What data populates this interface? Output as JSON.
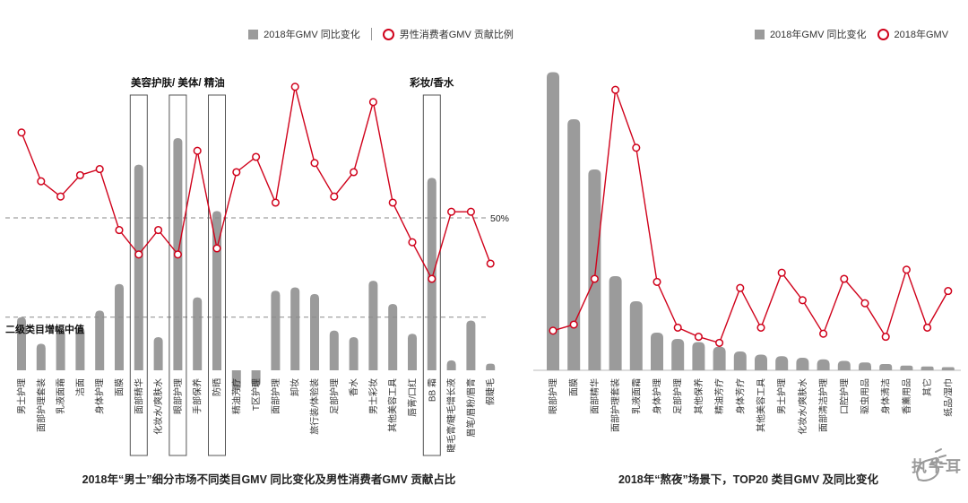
{
  "colors": {
    "bar": "#9B9B9B",
    "line": "#D0021B",
    "dashed": "#8a8a8a",
    "box": "#555555"
  },
  "logo": {
    "text": "执牛耳"
  },
  "chart_data": [
    {
      "type": "bar+line",
      "title": "2018年“男士”细分市场不同类目GMV 同比变化及男性消费者GMV 贡献占比",
      "legend_position": "top",
      "categories": [
        "男士护理",
        "面部护理套装",
        "乳液面霜",
        "洁面",
        "身体护理",
        "面膜",
        "面部精华",
        "化妆水/爽肤水",
        "眼部护理",
        "手部保养",
        "防晒",
        "精油芳疗",
        "T区护理",
        "面部护理",
        "卸妆",
        "旅行装/体验装",
        "足部护理",
        "香水",
        "男士彩妆",
        "其他美容工具",
        "唇膏/口红",
        "BB 霜",
        "睫毛膏/睫毛增长液",
        "眉笔/眉粉/眉膏",
        "假睫毛"
      ],
      "series": [
        {
          "name": "2018年GMV 同比变化",
          "type": "bar",
          "values": [
            0.16,
            0.08,
            0.12,
            0.13,
            0.18,
            0.26,
            0.62,
            0.1,
            0.7,
            0.22,
            0.48,
            -0.06,
            -0.05,
            0.24,
            0.25,
            0.23,
            0.12,
            0.1,
            0.27,
            0.2,
            0.11,
            0.58,
            0.03,
            0.15,
            0.02
          ]
        },
        {
          "name": "男性消费者GMV 贡献比例",
          "type": "line",
          "unit": "%",
          "values": [
            78,
            62,
            57,
            64,
            66,
            46,
            38,
            46,
            38,
            72,
            40,
            65,
            70,
            55,
            93,
            68,
            57,
            65,
            88,
            55,
            42,
            30,
            52,
            52,
            35
          ]
        }
      ],
      "reference_lines": [
        {
          "label": "50%",
          "scale": "line",
          "value": 50,
          "label_pos": "right"
        },
        {
          "label": "二级类目增幅中值",
          "scale": "bar",
          "value": 0.16,
          "label_pos": "below-left"
        }
      ],
      "highlight_groups": [
        {
          "label": "美容护肤/ 美体/ 精油",
          "category_indices": [
            6,
            8,
            10
          ]
        },
        {
          "label": "彩妆/香水",
          "category_indices": [
            21
          ]
        }
      ]
    },
    {
      "type": "bar+line",
      "title": "2018年“熬夜”场景下，TOP20 类目GMV 及同比变化",
      "legend_position": "top",
      "categories": [
        "眼部护理",
        "面膜",
        "面部精华",
        "面部护理套装",
        "乳液面霜",
        "身体护理",
        "足部护理",
        "其他保养",
        "精油芳疗",
        "身体芳疗",
        "其他美容工具",
        "男士护理",
        "化妆水/爽肤水",
        "面部清洁护理",
        "口腔护理",
        "驱虫用品",
        "身体清洁",
        "香薰用品",
        "其它",
        "纸品/湿巾"
      ],
      "series": [
        {
          "name": "2018年GMV 同比变化",
          "type": "bar",
          "values": [
            0.95,
            0.8,
            0.64,
            0.3,
            0.22,
            0.12,
            0.1,
            0.09,
            0.075,
            0.06,
            0.05,
            0.045,
            0.04,
            0.035,
            0.03,
            0.025,
            0.02,
            0.015,
            0.012,
            0.01
          ]
        },
        {
          "name": "2018年GMV",
          "type": "line",
          "unit": "relative",
          "values": [
            13,
            15,
            30,
            92,
            73,
            29,
            14,
            11,
            9,
            27,
            14,
            32,
            23,
            12,
            30,
            22,
            11,
            33,
            14,
            26
          ]
        }
      ],
      "reference_lines": [],
      "highlight_groups": []
    }
  ]
}
